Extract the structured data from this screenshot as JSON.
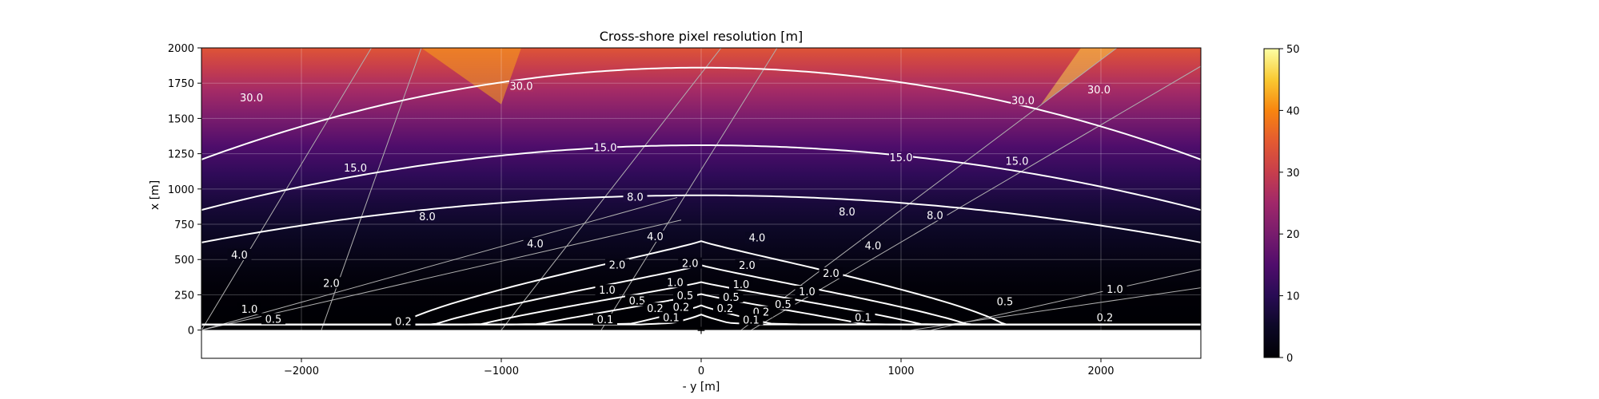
{
  "chart_data": {
    "type": "heatmap",
    "title": "Cross-shore pixel resolution [m]",
    "xlabel": "- y [m]",
    "ylabel": "x [m]",
    "xlim": [
      -2500,
      2500
    ],
    "ylim": [
      -200,
      2000
    ],
    "x_ticks": [
      -2000,
      -1000,
      0,
      1000,
      2000
    ],
    "x_tick_labels": [
      "−2000",
      "−1000",
      "0",
      "1000",
      "2000"
    ],
    "y_ticks": [
      0,
      250,
      500,
      750,
      1000,
      1250,
      1500,
      1750,
      2000
    ],
    "y_tick_labels": [
      "0",
      "250",
      "500",
      "750",
      "1000",
      "1250",
      "1500",
      "1750",
      "2000"
    ],
    "grid": true,
    "colormap": "inferno",
    "colorbar": {
      "range": [
        0,
        50
      ],
      "ticks": [
        0,
        10,
        20,
        30,
        40,
        50
      ],
      "tick_labels": [
        "0",
        "10",
        "20",
        "30",
        "40",
        "50"
      ]
    },
    "camera_position": {
      "x": 0,
      "y": 0,
      "marker": "+"
    },
    "contour_levels": [
      0.1,
      0.2,
      0.5,
      1.0,
      2.0,
      4.0,
      8.0,
      15.0,
      30.0
    ],
    "contours": [
      {
        "level": 30.0,
        "center_x": 1860,
        "halfwidth_y": 3700,
        "shape": 1.0,
        "label": "30.0",
        "label_points": [
          [
            -2250,
            1645
          ],
          [
            -900,
            1725
          ],
          [
            1610,
            1625
          ],
          [
            1990,
            1700
          ]
        ]
      },
      {
        "level": 15.0,
        "center_x": 1310,
        "halfwidth_y": 2800,
        "shape": 1.0,
        "label": "15.0",
        "label_points": [
          [
            -1730,
            1145
          ],
          [
            -480,
            1290
          ],
          [
            1000,
            1220
          ],
          [
            1580,
            1195
          ]
        ]
      },
      {
        "level": 8.0,
        "center_x": 955,
        "halfwidth_y": 2350,
        "shape": 1.0,
        "label": "8.0",
        "label_points": [
          [
            -1370,
            800
          ],
          [
            -330,
            940
          ],
          [
            730,
            835
          ],
          [
            1170,
            810
          ]
        ]
      },
      {
        "level": 4.0,
        "center_x": 630,
        "halfwidth_y": 1550,
        "shape": 2.0,
        "label": "4.0",
        "label_points": [
          [
            -2310,
            530
          ],
          [
            -830,
            610
          ],
          [
            -230,
            660
          ],
          [
            280,
            650
          ],
          [
            860,
            595
          ]
        ]
      },
      {
        "level": 2.0,
        "center_x": 460,
        "halfwidth_y": 1400,
        "shape": 2.2,
        "label": "2.0",
        "label_points": [
          [
            -1850,
            330
          ],
          [
            -420,
            460
          ],
          [
            -55,
            470
          ],
          [
            230,
            455
          ],
          [
            650,
            400
          ]
        ]
      },
      {
        "level": 1.0,
        "center_x": 340,
        "halfwidth_y": 1200,
        "shape": 2.3,
        "label": "1.0",
        "label_points": [
          [
            -2260,
            145
          ],
          [
            -470,
            280
          ],
          [
            -130,
            335
          ],
          [
            200,
            320
          ],
          [
            530,
            270
          ],
          [
            2070,
            285
          ]
        ]
      },
      {
        "level": 0.5,
        "center_x": 255,
        "halfwidth_y": 950,
        "shape": 2.5,
        "label": "0.5",
        "label_points": [
          [
            -2140,
            75
          ],
          [
            -320,
            205
          ],
          [
            -80,
            240
          ],
          [
            150,
            230
          ],
          [
            410,
            180
          ],
          [
            1520,
            200
          ]
        ]
      },
      {
        "level": 0.2,
        "center_x": 175,
        "halfwidth_y": 500,
        "shape": 3.0,
        "label": "0.2",
        "label_points": [
          [
            -1490,
            57
          ],
          [
            -230,
            150
          ],
          [
            -100,
            160
          ],
          [
            120,
            150
          ],
          [
            300,
            125
          ],
          [
            2020,
            85
          ]
        ]
      },
      {
        "level": 0.1,
        "center_x": 110,
        "halfwidth_y": 300,
        "shape": 3.2,
        "label": "0.1",
        "label_points": [
          [
            -480,
            72
          ],
          [
            -150,
            85
          ],
          [
            250,
            70
          ],
          [
            810,
            87
          ]
        ]
      }
    ],
    "camera_rays": [
      {
        "from": [
          0,
          -2500
        ],
        "to": [
          2000,
          -1650
        ]
      },
      {
        "from": [
          0,
          -1900
        ],
        "to": [
          2000,
          -1400
        ]
      },
      {
        "from": [
          0,
          -1000
        ],
        "to": [
          2000,
          100
        ]
      },
      {
        "from": [
          0,
          -500
        ],
        "to": [
          2000,
          380
        ]
      },
      {
        "from": [
          0,
          250
        ],
        "to": [
          1870,
          2500
        ]
      },
      {
        "from": [
          0,
          200
        ],
        "to": [
          2000,
          2080
        ]
      },
      {
        "from": [
          0,
          1150
        ],
        "to": [
          430,
          2500
        ]
      },
      {
        "from": [
          0,
          1050
        ],
        "to": [
          300,
          2500
        ]
      },
      {
        "from": [
          0,
          -2500
        ],
        "to": [
          940,
          -120
        ]
      },
      {
        "from": [
          0,
          -2500
        ],
        "to": [
          780,
          -100
        ]
      }
    ]
  }
}
